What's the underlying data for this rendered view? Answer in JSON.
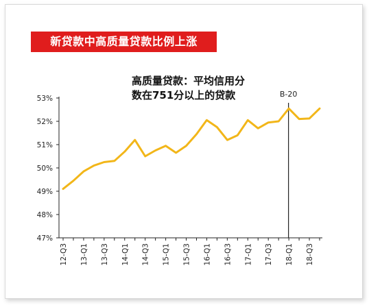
{
  "title": "新贷款中高质量贷款比例上涨",
  "annotation": {
    "line1": "高质量贷款：平均信用分",
    "line2": "数在751分以上的贷款"
  },
  "colors": {
    "title_bg": "#e01d1d",
    "title_text": "#ffffff",
    "series": "#f2b619",
    "axis": "#222222",
    "marker": "#222222"
  },
  "chart_data": {
    "type": "line",
    "title": "新贷款中高质量贷款比例上涨",
    "x_tick_labels": [
      "12-Q3",
      "13-Q1",
      "13-Q3",
      "14-Q1",
      "14-Q3",
      "15-Q1",
      "15-Q3",
      "16-Q1",
      "16-Q3",
      "17-Q1",
      "17-Q3",
      "18-Q1",
      "18-Q3"
    ],
    "x": [
      "12-Q3",
      "12-Q4",
      "13-Q1",
      "13-Q2",
      "13-Q3",
      "13-Q4",
      "14-Q1",
      "14-Q2",
      "14-Q3",
      "14-Q4",
      "15-Q1",
      "15-Q2",
      "15-Q3",
      "15-Q4",
      "16-Q1",
      "16-Q2",
      "16-Q3",
      "16-Q4",
      "17-Q1",
      "17-Q2",
      "17-Q3",
      "17-Q4",
      "18-Q1",
      "18-Q2",
      "18-Q3",
      "18-Q4"
    ],
    "series": [
      {
        "values": [
          49.1,
          49.45,
          49.85,
          50.1,
          50.25,
          50.3,
          50.7,
          51.2,
          50.5,
          50.75,
          50.95,
          50.65,
          50.95,
          51.45,
          52.05,
          51.75,
          51.2,
          51.4,
          52.05,
          51.7,
          51.95,
          52.0,
          52.55,
          52.1,
          52.12,
          52.55
        ],
        "color": "#f2b619"
      }
    ],
    "y_tick_labels": [
      "47%",
      "48%",
      "49%",
      "50%",
      "51%",
      "52%",
      "53%"
    ],
    "ylim": [
      47,
      53
    ],
    "y_unit": "%",
    "grid": false,
    "marker": {
      "label": "B-20",
      "at_index": 22
    }
  }
}
